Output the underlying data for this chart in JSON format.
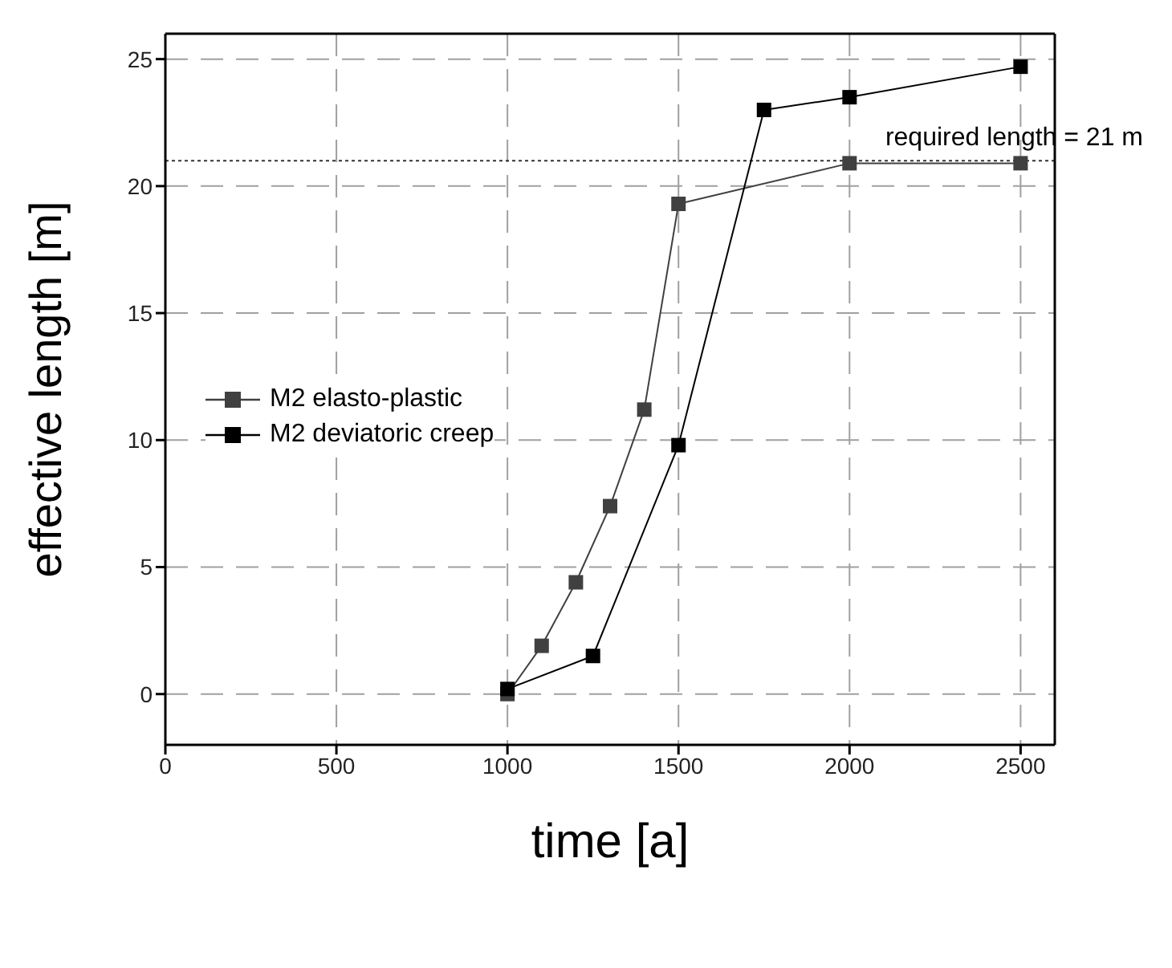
{
  "chart_data": {
    "type": "line",
    "xlabel": "time [a]",
    "ylabel": "effective length [m]",
    "xlim": [
      0,
      2600
    ],
    "xticks": [
      0,
      500,
      1000,
      1500,
      2000,
      2500
    ],
    "ylim": [
      -2,
      26
    ],
    "yticks": [
      0,
      5,
      10,
      15,
      20,
      25
    ],
    "grid": true,
    "legend": "left",
    "marker": "square",
    "line_style": "solid",
    "series": [
      {
        "name": "M2 elasto-plastic",
        "color": "#404040",
        "x": [
          1000,
          1100,
          1200,
          1300,
          1400,
          1500,
          2000,
          2500
        ],
        "values": [
          0,
          1.9,
          4.4,
          7.4,
          11.2,
          19.3,
          20.9,
          20.9
        ]
      },
      {
        "name": "M2 deviatoric creep",
        "color": "#000000",
        "x": [
          1000,
          1250,
          1500,
          1750,
          2000,
          2500
        ],
        "values": [
          0.2,
          1.5,
          9.8,
          23.0,
          23.5,
          24.7
        ]
      }
    ],
    "ref_lines": [
      {
        "axis": "y",
        "value": 21,
        "label": "required length = 21 m",
        "line_style": "dotted"
      }
    ]
  }
}
